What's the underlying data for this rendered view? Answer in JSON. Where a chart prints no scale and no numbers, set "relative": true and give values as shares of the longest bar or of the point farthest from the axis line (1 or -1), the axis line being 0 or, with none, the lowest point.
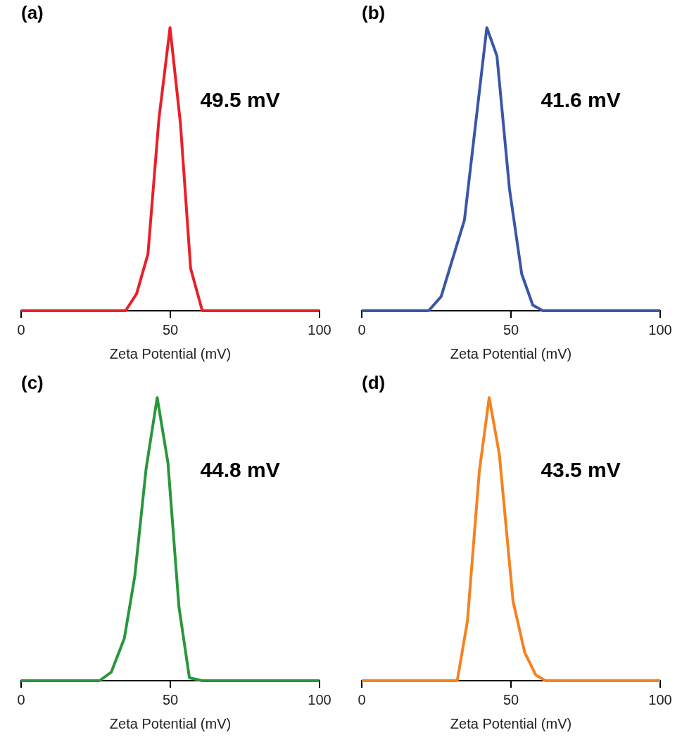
{
  "chart_data": [
    {
      "type": "line",
      "title": "(a)",
      "xlabel": "Zeta Potential (mV)",
      "relative": true,
      "xlim": [
        0,
        100
      ],
      "xticks": [
        0,
        50,
        100
      ],
      "annotations": [
        "49.5 mV"
      ],
      "series": [
        {
          "color": "#e8202a",
          "x": [
            0,
            35.0,
            38.7,
            42.5,
            46.2,
            49.9,
            53.4,
            56.8,
            60.7,
            100
          ],
          "values": [
            0,
            0,
            0.06,
            0.2,
            0.68,
            1,
            0.66,
            0.15,
            0,
            0
          ]
        }
      ]
    },
    {
      "type": "line",
      "title": "(b)",
      "xlabel": "Zeta Potential (mV)",
      "relative": true,
      "xlim": [
        0,
        100
      ],
      "xticks": [
        0,
        50,
        100
      ],
      "annotations": [
        "41.6 mV"
      ],
      "series": [
        {
          "color": "#3a56a8",
          "x": [
            0,
            22.4,
            26.6,
            34.4,
            41.9,
            45.3,
            49.5,
            53.6,
            57.3,
            60.7,
            100
          ],
          "values": [
            0,
            0,
            0.05,
            0.32,
            1,
            0.9,
            0.43,
            0.13,
            0.02,
            0,
            0
          ]
        }
      ]
    },
    {
      "type": "line",
      "title": "(c)",
      "xlabel": "Zeta Potential (mV)",
      "relative": true,
      "xlim": [
        0,
        100
      ],
      "xticks": [
        0,
        50,
        100
      ],
      "annotations": [
        "44.8 mV"
      ],
      "series": [
        {
          "color": "#2a963c",
          "x": [
            0,
            26.3,
            30.2,
            34.6,
            38.1,
            41.9,
            45.6,
            49.2,
            52.9,
            56.4,
            60.7,
            100
          ],
          "values": [
            0,
            0,
            0.03,
            0.15,
            0.37,
            0.75,
            1,
            0.77,
            0.26,
            0.01,
            0,
            0
          ]
        }
      ]
    },
    {
      "type": "line",
      "title": "(d)",
      "xlabel": "Zeta Potential (mV)",
      "relative": true,
      "xlim": [
        0,
        100
      ],
      "xticks": [
        0,
        50,
        100
      ],
      "annotations": [
        "43.5 mV"
      ],
      "series": [
        {
          "color": "#f58220",
          "x": [
            0,
            32.0,
            35.4,
            39.4,
            42.7,
            46.1,
            50.7,
            54.6,
            58.3,
            61.6,
            100
          ],
          "values": [
            0,
            0,
            0.21,
            0.74,
            1,
            0.8,
            0.28,
            0.1,
            0.02,
            0,
            0
          ]
        }
      ]
    }
  ]
}
